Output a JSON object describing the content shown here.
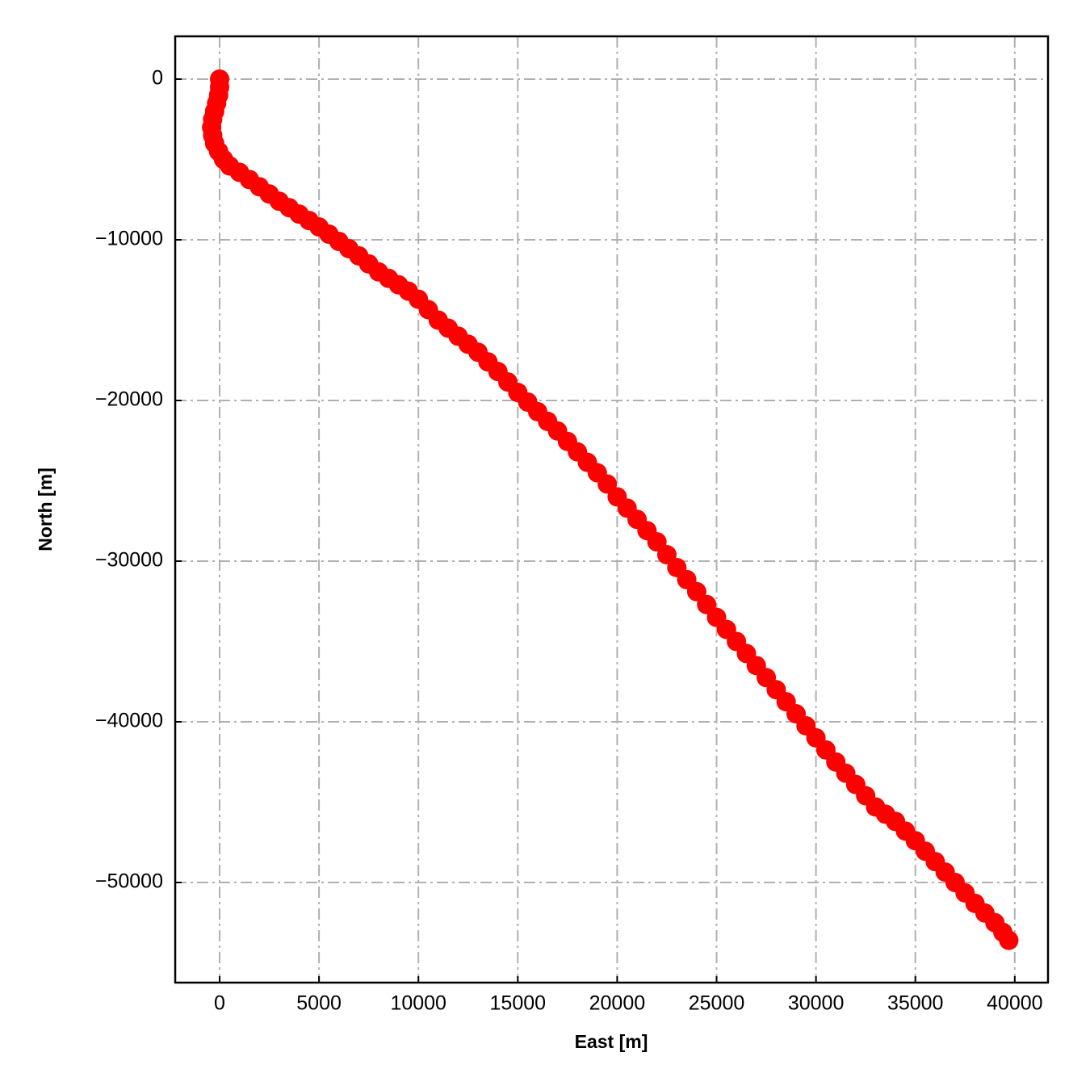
{
  "chart_data": {
    "type": "scatter",
    "x_label": "East [m]",
    "y_label": "North [m]",
    "color": "#ff0000",
    "grid": true,
    "xlim": [
      -2234,
      41673
    ],
    "ylim": [
      -56231,
      2663
    ],
    "xticks": [
      0,
      5000,
      10000,
      15000,
      20000,
      25000,
      30000,
      35000,
      40000
    ],
    "yticks": [
      0,
      {
        "value": -10000,
        "label": "−10000"
      },
      {
        "value": -20000,
        "label": "−20000"
      },
      {
        "value": -30000,
        "label": "−30000"
      },
      {
        "value": -40000,
        "label": "−40000"
      },
      {
        "value": -50000,
        "label": "−50000"
      }
    ],
    "x": [
      0,
      0,
      -50,
      -150,
      -250,
      -350,
      -400,
      -350,
      -250,
      -50,
      200,
      500,
      1000,
      1500,
      2000,
      2500,
      3000,
      3500,
      4000,
      4500,
      5000,
      5500,
      6000,
      6500,
      7000,
      7500,
      8000,
      8500,
      9000,
      9500,
      10000,
      10500,
      11000,
      11500,
      12000,
      12500,
      13000,
      13500,
      14000,
      14500,
      15000,
      15500,
      16000,
      16500,
      17000,
      17500,
      18000,
      18500,
      19000,
      19500,
      20000,
      20500,
      21000,
      21500,
      22000,
      22500,
      23000,
      23500,
      24000,
      24500,
      25000,
      25500,
      26000,
      26500,
      27000,
      27500,
      28000,
      28500,
      29000,
      29500,
      30000,
      30500,
      31000,
      31500,
      32000,
      32500,
      33000,
      33500,
      34000,
      34500,
      35000,
      35500,
      36000,
      36500,
      37000,
      37500,
      38000,
      38500,
      39000,
      39400,
      39700
    ],
    "y": [
      0,
      -500,
      -1000,
      -1500,
      -2000,
      -2500,
      -3000,
      -3500,
      -4000,
      -4500,
      -5000,
      -5400,
      -5800,
      -6250,
      -6700,
      -7150,
      -7600,
      -8000,
      -8400,
      -8800,
      -9200,
      -9650,
      -10100,
      -10550,
      -11000,
      -11500,
      -12000,
      -12400,
      -12800,
      -13200,
      -13700,
      -14350,
      -15000,
      -15500,
      -16000,
      -16500,
      -17000,
      -17600,
      -18200,
      -18850,
      -19500,
      -20100,
      -20700,
      -21300,
      -21900,
      -22550,
      -23200,
      -23850,
      -24500,
      -25200,
      -26000,
      -26700,
      -27400,
      -28100,
      -28800,
      -29600,
      -30400,
      -31150,
      -31900,
      -32700,
      -33500,
      -34250,
      -35000,
      -35750,
      -36500,
      -37250,
      -38000,
      -38750,
      -39500,
      -40250,
      -41000,
      -41750,
      -42500,
      -43200,
      -43900,
      -44600,
      -45300,
      -45750,
      -46200,
      -46800,
      -47400,
      -48050,
      -48700,
      -49350,
      -50000,
      -50650,
      -51300,
      -51900,
      -52500,
      -53100,
      -53600
    ]
  }
}
